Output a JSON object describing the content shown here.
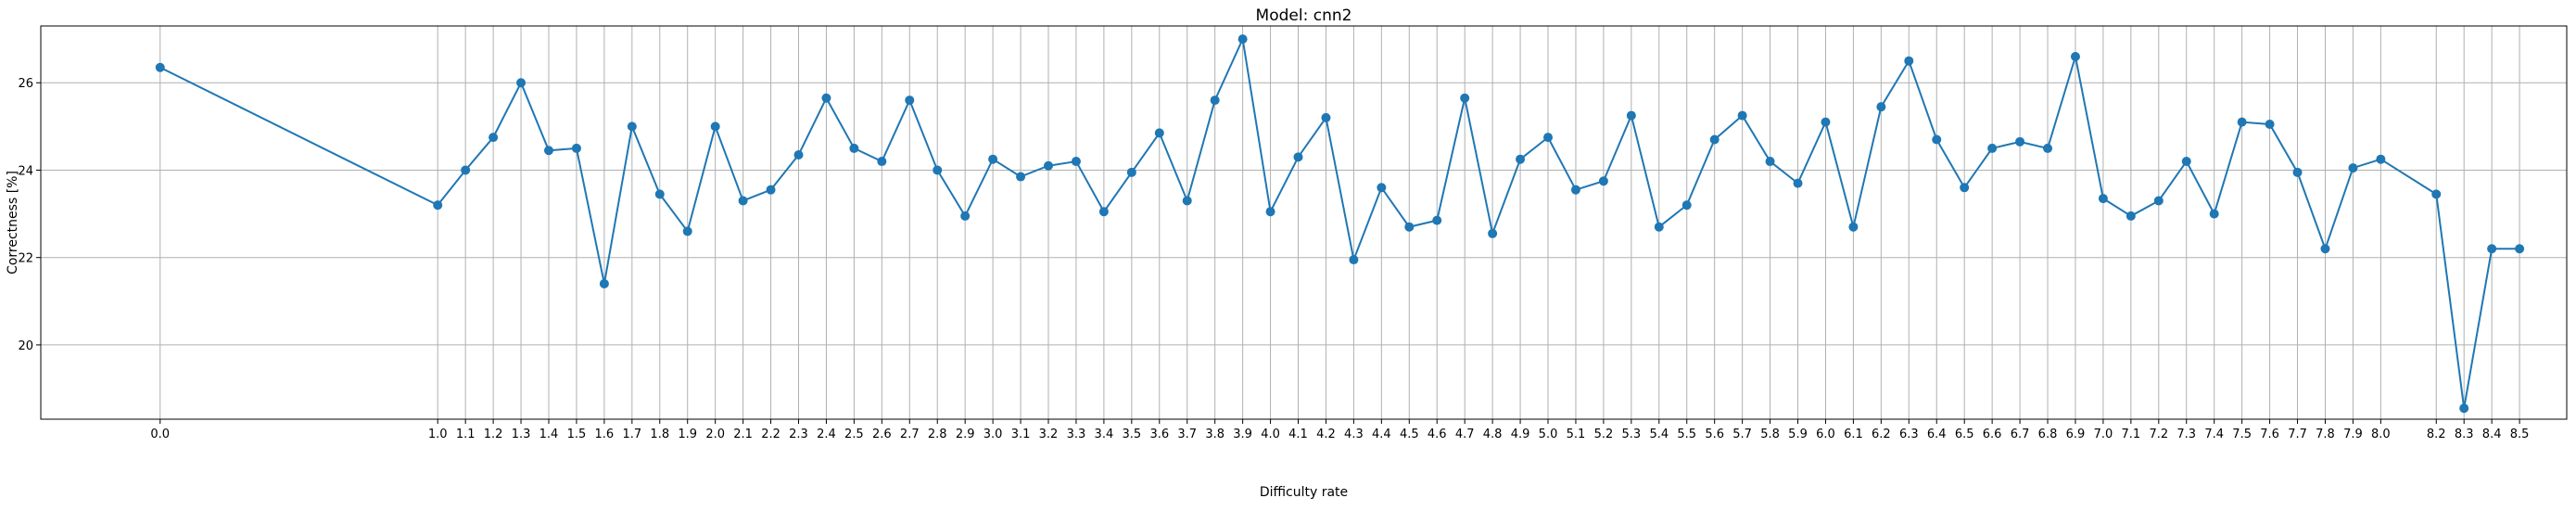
{
  "chart_data": {
    "type": "line",
    "title": "Model: cnn2",
    "xlabel": "Difficulty rate",
    "ylabel": "Correctness [%]",
    "xlim": [
      -0.43,
      8.67
    ],
    "ylim": [
      18.3,
      27.3
    ],
    "yticks": [
      20,
      22,
      24,
      26
    ],
    "grid": true,
    "series_color": "#1f77b4",
    "x": [
      0.0,
      1.0,
      1.1,
      1.2,
      1.3,
      1.4,
      1.5,
      1.6,
      1.7,
      1.8,
      1.9,
      2.0,
      2.1,
      2.2,
      2.3,
      2.4,
      2.5,
      2.6,
      2.7,
      2.8,
      2.9,
      3.0,
      3.1,
      3.2,
      3.3,
      3.4,
      3.5,
      3.6,
      3.7,
      3.8,
      3.9,
      4.0,
      4.1,
      4.2,
      4.3,
      4.4,
      4.5,
      4.6,
      4.7,
      4.8,
      4.9,
      5.0,
      5.1,
      5.2,
      5.3,
      5.4,
      5.5,
      5.6,
      5.7,
      5.8,
      5.9,
      6.0,
      6.1,
      6.2,
      6.3,
      6.4,
      6.5,
      6.6,
      6.7,
      6.8,
      6.9,
      7.0,
      7.1,
      7.2,
      7.3,
      7.4,
      7.5,
      7.6,
      7.7,
      7.8,
      7.9,
      8.0,
      8.2,
      8.3,
      8.4,
      8.5
    ],
    "x_tick_labels": [
      "0.0",
      "1.0",
      "1.1",
      "1.2",
      "1.3",
      "1.4",
      "1.5",
      "1.6",
      "1.7",
      "1.8",
      "1.9",
      "2.0",
      "2.1",
      "2.2",
      "2.3",
      "2.4",
      "2.5",
      "2.6",
      "2.7",
      "2.8",
      "2.9",
      "3.0",
      "3.1",
      "3.2",
      "3.3",
      "3.4",
      "3.5",
      "3.6",
      "3.7",
      "3.8",
      "3.9",
      "4.0",
      "4.1",
      "4.2",
      "4.3",
      "4.4",
      "4.5",
      "4.6",
      "4.7",
      "4.8",
      "4.9",
      "5.0",
      "5.1",
      "5.2",
      "5.3",
      "5.4",
      "5.5",
      "5.6",
      "5.7",
      "5.8",
      "5.9",
      "6.0",
      "6.1",
      "6.2",
      "6.3",
      "6.4",
      "6.5",
      "6.6",
      "6.7",
      "6.8",
      "6.9",
      "7.0",
      "7.1",
      "7.2",
      "7.3",
      "7.4",
      "7.5",
      "7.6",
      "7.7",
      "7.8",
      "7.9",
      "8.0",
      "8.2",
      "8.3",
      "8.4",
      "8.5"
    ],
    "y": [
      26.35,
      23.2,
      24.0,
      24.75,
      26.0,
      24.45,
      24.5,
      21.4,
      25.0,
      23.45,
      22.6,
      25.0,
      23.3,
      23.55,
      24.35,
      25.65,
      24.5,
      24.2,
      25.6,
      24.0,
      22.95,
      24.25,
      23.85,
      24.1,
      24.2,
      23.05,
      23.95,
      24.85,
      23.3,
      25.6,
      27.0,
      23.05,
      24.3,
      25.2,
      21.95,
      23.6,
      22.7,
      22.85,
      25.65,
      22.55,
      24.25,
      24.75,
      23.55,
      23.75,
      25.25,
      22.7,
      23.2,
      24.7,
      25.25,
      24.2,
      23.7,
      25.1,
      22.7,
      25.45,
      26.5,
      24.7,
      23.6,
      24.5,
      24.65,
      24.5,
      26.6,
      23.35,
      22.95,
      23.3,
      24.2,
      23.0,
      25.1,
      25.05,
      23.95,
      22.2,
      24.05,
      24.25,
      23.45,
      18.55,
      22.2,
      22.2
    ]
  }
}
